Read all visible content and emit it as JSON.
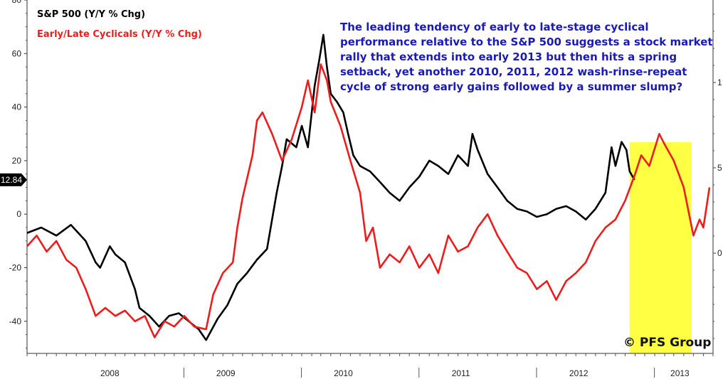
{
  "chart_data": {
    "type": "line",
    "title": "",
    "xlabel": "",
    "ylabel": "",
    "ylim": [
      -52,
      80
    ],
    "y_ticks": [
      80,
      60,
      40,
      20,
      0,
      -20,
      -40
    ],
    "x_range": [
      "2007-09-01",
      "2013-07-01"
    ],
    "year_labels": [
      {
        "label": "2008",
        "date": "2008-05-15"
      },
      {
        "label": "2009",
        "date": "2009-05-10"
      },
      {
        "label": "2010",
        "date": "2010-05-10"
      },
      {
        "label": "2011",
        "date": "2011-05-10"
      },
      {
        "label": "2012",
        "date": "2012-05-10"
      },
      {
        "label": "2013",
        "date": "2013-03-20"
      }
    ],
    "year_separators": [
      "2008-12-31",
      "2009-12-31",
      "2010-12-31",
      "2011-12-31",
      "2012-12-31"
    ],
    "highlight": {
      "start": "2012-10-15",
      "end": "2013-04-25",
      "color": "#ffff44"
    },
    "current_value_label": {
      "text": "12.84",
      "value": 12.84
    },
    "right_axis_tick_fragments": [
      "1",
      "5",
      "0"
    ],
    "legend": [
      {
        "text": "S&P 500 (Y/Y % Chg)",
        "color": "#000000"
      },
      {
        "text": "Early/Late Cyclicals (Y/Y % Chg)",
        "color": "#ee1c1c"
      }
    ],
    "series": [
      {
        "name": "S&P 500 (Y/Y % Chg)",
        "color": "#000000",
        "points": [
          [
            "2007-09-01",
            -7
          ],
          [
            "2007-10-15",
            -5
          ],
          [
            "2007-12-01",
            -8
          ],
          [
            "2008-01-15",
            -4
          ],
          [
            "2008-03-01",
            -10
          ],
          [
            "2008-04-01",
            -18
          ],
          [
            "2008-04-15",
            -20
          ],
          [
            "2008-05-15",
            -12
          ],
          [
            "2008-06-01",
            -15
          ],
          [
            "2008-07-01",
            -18
          ],
          [
            "2008-08-01",
            -28
          ],
          [
            "2008-08-15",
            -35
          ],
          [
            "2008-09-15",
            -38
          ],
          [
            "2008-10-15",
            -42
          ],
          [
            "2008-11-15",
            -38
          ],
          [
            "2008-12-15",
            -37
          ],
          [
            "2009-01-15",
            -40
          ],
          [
            "2009-02-15",
            -43
          ],
          [
            "2009-03-10",
            -47
          ],
          [
            "2009-04-15",
            -39
          ],
          [
            "2009-05-15",
            -34
          ],
          [
            "2009-06-15",
            -26
          ],
          [
            "2009-07-15",
            -22
          ],
          [
            "2009-08-15",
            -17
          ],
          [
            "2009-09-15",
            -13
          ],
          [
            "2009-10-15",
            8
          ],
          [
            "2009-11-01",
            18
          ],
          [
            "2009-11-15",
            28
          ],
          [
            "2009-12-15",
            25
          ],
          [
            "2010-01-01",
            33
          ],
          [
            "2010-01-20",
            25
          ],
          [
            "2010-02-10",
            48
          ],
          [
            "2010-02-25",
            58
          ],
          [
            "2010-03-09",
            67
          ],
          [
            "2010-03-20",
            55
          ],
          [
            "2010-04-01",
            45
          ],
          [
            "2010-04-20",
            42
          ],
          [
            "2010-05-10",
            38
          ],
          [
            "2010-05-25",
            30
          ],
          [
            "2010-06-10",
            22
          ],
          [
            "2010-07-01",
            18
          ],
          [
            "2010-08-01",
            16
          ],
          [
            "2010-09-01",
            12
          ],
          [
            "2010-10-01",
            8
          ],
          [
            "2010-11-01",
            5
          ],
          [
            "2010-12-01",
            10
          ],
          [
            "2011-01-01",
            14
          ],
          [
            "2011-02-01",
            20
          ],
          [
            "2011-03-01",
            18
          ],
          [
            "2011-04-01",
            15
          ],
          [
            "2011-05-01",
            22
          ],
          [
            "2011-06-01",
            18
          ],
          [
            "2011-06-15",
            30
          ],
          [
            "2011-07-01",
            24
          ],
          [
            "2011-08-01",
            15
          ],
          [
            "2011-09-01",
            10
          ],
          [
            "2011-10-01",
            5
          ],
          [
            "2011-11-01",
            2
          ],
          [
            "2011-12-01",
            1
          ],
          [
            "2012-01-01",
            -1
          ],
          [
            "2012-02-01",
            0
          ],
          [
            "2012-03-01",
            2
          ],
          [
            "2012-04-01",
            3
          ],
          [
            "2012-05-01",
            1
          ],
          [
            "2012-06-01",
            -2
          ],
          [
            "2012-07-01",
            2
          ],
          [
            "2012-08-01",
            8
          ],
          [
            "2012-08-20",
            25
          ],
          [
            "2012-09-01",
            18
          ],
          [
            "2012-09-20",
            27
          ],
          [
            "2012-10-05",
            24
          ],
          [
            "2012-10-15",
            16
          ],
          [
            "2012-10-30",
            12.84
          ]
        ]
      },
      {
        "name": "Early/Late Cyclicals (Y/Y % Chg)",
        "color": "#ee1c1c",
        "points": [
          [
            "2007-09-01",
            -12
          ],
          [
            "2007-10-01",
            -8
          ],
          [
            "2007-11-01",
            -14
          ],
          [
            "2007-12-01",
            -10
          ],
          [
            "2008-01-01",
            -17
          ],
          [
            "2008-02-01",
            -20
          ],
          [
            "2008-03-01",
            -28
          ],
          [
            "2008-04-01",
            -38
          ],
          [
            "2008-05-01",
            -35
          ],
          [
            "2008-06-01",
            -38
          ],
          [
            "2008-07-01",
            -36
          ],
          [
            "2008-08-01",
            -40
          ],
          [
            "2008-09-01",
            -38
          ],
          [
            "2008-10-01",
            -46
          ],
          [
            "2008-11-01",
            -40
          ],
          [
            "2008-12-01",
            -42
          ],
          [
            "2009-01-01",
            -38
          ],
          [
            "2009-02-01",
            -42
          ],
          [
            "2009-03-10",
            -43
          ],
          [
            "2009-04-01",
            -30
          ],
          [
            "2009-05-01",
            -22
          ],
          [
            "2009-06-01",
            -18
          ],
          [
            "2009-06-15",
            -5
          ],
          [
            "2009-07-01",
            6
          ],
          [
            "2009-08-01",
            22
          ],
          [
            "2009-08-15",
            35
          ],
          [
            "2009-09-01",
            38
          ],
          [
            "2009-10-01",
            30
          ],
          [
            "2009-11-01",
            20
          ],
          [
            "2009-12-01",
            28
          ],
          [
            "2010-01-01",
            40
          ],
          [
            "2010-01-20",
            50
          ],
          [
            "2010-02-10",
            38
          ],
          [
            "2010-03-01",
            56
          ],
          [
            "2010-03-20",
            50
          ],
          [
            "2010-04-01",
            42
          ],
          [
            "2010-05-01",
            33
          ],
          [
            "2010-06-01",
            20
          ],
          [
            "2010-07-01",
            8
          ],
          [
            "2010-07-20",
            -10
          ],
          [
            "2010-08-10",
            -5
          ],
          [
            "2010-09-01",
            -20
          ],
          [
            "2010-10-01",
            -15
          ],
          [
            "2010-11-01",
            -18
          ],
          [
            "2010-12-01",
            -12
          ],
          [
            "2011-01-01",
            -20
          ],
          [
            "2011-02-01",
            -15
          ],
          [
            "2011-03-01",
            -22
          ],
          [
            "2011-04-01",
            -8
          ],
          [
            "2011-05-01",
            -14
          ],
          [
            "2011-06-01",
            -12
          ],
          [
            "2011-07-01",
            -5
          ],
          [
            "2011-08-01",
            0
          ],
          [
            "2011-09-01",
            -8
          ],
          [
            "2011-10-01",
            -14
          ],
          [
            "2011-11-01",
            -20
          ],
          [
            "2011-12-01",
            -22
          ],
          [
            "2012-01-01",
            -28
          ],
          [
            "2012-02-01",
            -25
          ],
          [
            "2012-03-01",
            -32
          ],
          [
            "2012-04-01",
            -25
          ],
          [
            "2012-05-01",
            -22
          ],
          [
            "2012-06-01",
            -18
          ],
          [
            "2012-07-01",
            -10
          ],
          [
            "2012-08-01",
            -5
          ],
          [
            "2012-09-01",
            -2
          ],
          [
            "2012-10-01",
            5
          ],
          [
            "2012-11-01",
            15
          ],
          [
            "2012-11-20",
            22
          ],
          [
            "2012-12-15",
            18
          ],
          [
            "2013-01-15",
            30
          ],
          [
            "2013-02-01",
            26
          ],
          [
            "2013-03-01",
            20
          ],
          [
            "2013-04-01",
            10
          ],
          [
            "2013-05-01",
            -8
          ],
          [
            "2013-05-20",
            -2
          ],
          [
            "2013-06-01",
            -5
          ],
          [
            "2013-06-20",
            10
          ]
        ]
      }
    ]
  },
  "annotation": {
    "lines": [
      "The leading tendency of early to late-stage cyclical",
      "performance relative to the S&P 500 suggests a stock market",
      "rally that extends into early 2013 but then hits a spring",
      "setback, yet another 2010, 2011, 2012 wash-rinse-repeat",
      "cycle of strong early gains followed by a summer slump?"
    ]
  },
  "copyright": "© PFS Group"
}
